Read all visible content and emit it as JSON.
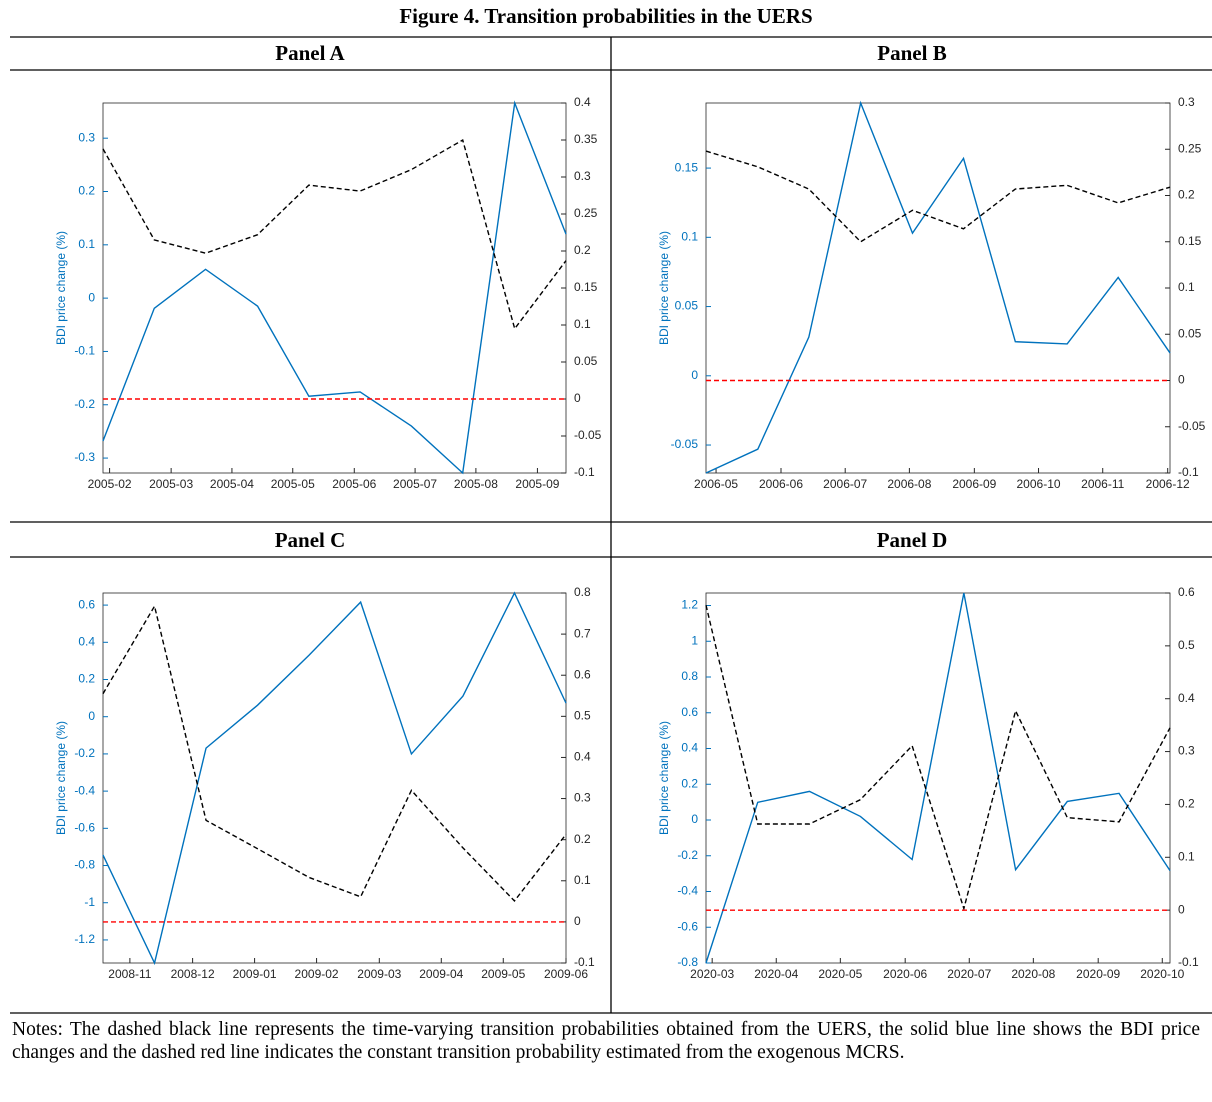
{
  "title": "Figure 4. Transition probabilities in the UERS",
  "notes": "Notes: The dashed black line represents the time-varying transition probabilities obtained from the UERS, the solid blue line shows the BDI price changes and the dashed red line indicates the constant transition probability estimated from the exogenous MCRS.",
  "chart_data": [
    {
      "type": "line",
      "title": "Panel A",
      "ylabel": "BDI price change (%)",
      "x": [
        2005.074,
        2005.144,
        2005.214,
        2005.285,
        2005.355,
        2005.425,
        2005.495,
        2005.565,
        2005.636,
        2005.706
      ],
      "xlim": [
        2005.074,
        2005.706
      ],
      "xticks": [
        {
          "value": 2005.083,
          "label": "2005-02"
        },
        {
          "value": 2005.167,
          "label": "2005-03"
        },
        {
          "value": 2005.25,
          "label": "2005-04"
        },
        {
          "value": 2005.333,
          "label": "2005-05"
        },
        {
          "value": 2005.417,
          "label": "2005-06"
        },
        {
          "value": 2005.5,
          "label": "2005-07"
        },
        {
          "value": 2005.583,
          "label": "2005-08"
        },
        {
          "value": 2005.667,
          "label": "2005-09"
        }
      ],
      "ylim": [
        -0.328,
        0.366
      ],
      "yticks": [
        -0.3,
        -0.2,
        -0.1,
        0,
        0.1,
        0.2,
        0.3
      ],
      "y2lim": [
        -0.1,
        0.4
      ],
      "y2ticks": [
        -0.1,
        -0.05,
        0,
        0.05,
        0.1,
        0.15,
        0.2,
        0.25,
        0.3,
        0.35,
        0.4
      ],
      "series": [
        {
          "color": "#0072bd",
          "dashed": false,
          "values": [
            -0.268,
            -0.019,
            0.054,
            -0.015,
            -0.184,
            -0.176,
            -0.24,
            -0.328,
            0.366,
            0.12
          ]
        },
        {
          "color": "#000000",
          "dashed": true,
          "axis": "y2",
          "values": [
            0.338,
            0.215,
            0.197,
            0.222,
            0.289,
            0.281,
            0.31,
            0.35,
            0.095,
            0.187
          ]
        },
        {
          "color": "#ff0000",
          "dashed": true,
          "axis": "y2",
          "values": [
            0,
            0,
            0,
            0,
            0,
            0,
            0,
            0,
            0,
            0
          ]
        }
      ]
    },
    {
      "type": "line",
      "title": "Panel B",
      "ylabel": "BDI price change (%)",
      "x": [
        2006.32,
        2006.387,
        2006.453,
        2006.52,
        2006.587,
        2006.653,
        2006.72,
        2006.787,
        2006.853,
        2006.92
      ],
      "xlim": [
        2006.32,
        2006.92
      ],
      "xticks": [
        {
          "value": 2006.333,
          "label": "2006-05"
        },
        {
          "value": 2006.417,
          "label": "2006-06"
        },
        {
          "value": 2006.5,
          "label": "2006-07"
        },
        {
          "value": 2006.583,
          "label": "2006-08"
        },
        {
          "value": 2006.667,
          "label": "2006-09"
        },
        {
          "value": 2006.75,
          "label": "2006-10"
        },
        {
          "value": 2006.833,
          "label": "2006-11"
        },
        {
          "value": 2006.917,
          "label": "2006-12"
        }
      ],
      "ylim": [
        -0.0702,
        0.197
      ],
      "yticks": [
        -0.05,
        0,
        0.05,
        0.1,
        0.15
      ],
      "y2lim": [
        -0.1,
        0.3
      ],
      "y2ticks": [
        -0.1,
        -0.05,
        0,
        0.05,
        0.1,
        0.15,
        0.2,
        0.25,
        0.3
      ],
      "series": [
        {
          "color": "#0072bd",
          "dashed": false,
          "values": [
            -0.0702,
            -0.053,
            0.028,
            0.197,
            0.103,
            0.157,
            0.0246,
            0.023,
            0.071,
            0.0165
          ]
        },
        {
          "color": "#000000",
          "dashed": true,
          "axis": "y2",
          "values": [
            0.248,
            0.231,
            0.207,
            0.15,
            0.184,
            0.164,
            0.207,
            0.211,
            0.192,
            0.209
          ]
        },
        {
          "color": "#ff0000",
          "dashed": true,
          "axis": "y2",
          "values": [
            0,
            0,
            0,
            0,
            0,
            0,
            0,
            0,
            0,
            0
          ]
        }
      ]
    },
    {
      "type": "line",
      "title": "Panel C",
      "ylabel": "BDI price change (%)",
      "x": [
        2008.797,
        2008.866,
        2008.935,
        2009.004,
        2009.073,
        2009.142,
        2009.21,
        2009.279,
        2009.348,
        2009.417
      ],
      "xlim": [
        2008.797,
        2009.417
      ],
      "xticks": [
        {
          "value": 2008.833,
          "label": "2008-11"
        },
        {
          "value": 2008.917,
          "label": "2008-12"
        },
        {
          "value": 2009.0,
          "label": "2009-01"
        },
        {
          "value": 2009.083,
          "label": "2009-02"
        },
        {
          "value": 2009.167,
          "label": "2009-03"
        },
        {
          "value": 2009.25,
          "label": "2009-04"
        },
        {
          "value": 2009.333,
          "label": "2009-05"
        },
        {
          "value": 2009.417,
          "label": "2009-06"
        }
      ],
      "ylim": [
        -1.324,
        0.665
      ],
      "yticks": [
        -1.2,
        -1,
        -0.8,
        -0.6,
        -0.4,
        -0.2,
        0,
        0.2,
        0.4,
        0.6
      ],
      "y2lim": [
        -0.1,
        0.8
      ],
      "y2ticks": [
        -0.1,
        0,
        0.1,
        0.2,
        0.3,
        0.4,
        0.5,
        0.6,
        0.7,
        0.8
      ],
      "series": [
        {
          "color": "#0072bd",
          "dashed": false,
          "values": [
            -0.744,
            -1.324,
            -0.169,
            0.062,
            0.331,
            0.616,
            -0.2,
            0.111,
            0.665,
            0.073
          ]
        },
        {
          "color": "#000000",
          "dashed": true,
          "axis": "y2",
          "values": [
            0.555,
            0.768,
            0.247,
            0.178,
            0.108,
            0.061,
            0.32,
            0.18,
            0.051,
            0.213
          ]
        },
        {
          "color": "#ff0000",
          "dashed": true,
          "axis": "y2",
          "values": [
            0,
            0,
            0,
            0,
            0,
            0,
            0,
            0,
            0,
            0
          ]
        }
      ]
    },
    {
      "type": "line",
      "title": "Panel D",
      "ylabel": "BDI price change (%)",
      "x": [
        2020.159,
        2020.226,
        2020.293,
        2020.359,
        2020.426,
        2020.493,
        2020.56,
        2020.627,
        2020.694,
        2020.76
      ],
      "xlim": [
        2020.159,
        2020.76
      ],
      "xticks": [
        {
          "value": 2020.167,
          "label": "2020-03"
        },
        {
          "value": 2020.25,
          "label": "2020-04"
        },
        {
          "value": 2020.333,
          "label": "2020-05"
        },
        {
          "value": 2020.417,
          "label": "2020-06"
        },
        {
          "value": 2020.5,
          "label": "2020-07"
        },
        {
          "value": 2020.583,
          "label": "2020-08"
        },
        {
          "value": 2020.667,
          "label": "2020-09"
        },
        {
          "value": 2020.75,
          "label": "2020-10"
        }
      ],
      "ylim": [
        -0.8,
        1.27
      ],
      "yticks": [
        -0.8,
        -0.6,
        -0.4,
        -0.2,
        0,
        0.2,
        0.4,
        0.6,
        0.8,
        1,
        1.2
      ],
      "y2lim": [
        -0.1,
        0.6
      ],
      "y2ticks": [
        -0.1,
        0,
        0.1,
        0.2,
        0.3,
        0.4,
        0.5,
        0.6
      ],
      "series": [
        {
          "color": "#0072bd",
          "dashed": false,
          "values": [
            -0.8,
            0.099,
            0.16,
            0.02,
            -0.221,
            1.27,
            -0.278,
            0.104,
            0.149,
            -0.283
          ]
        },
        {
          "color": "#000000",
          "dashed": true,
          "axis": "y2",
          "values": [
            0.577,
            0.163,
            0.163,
            0.209,
            0.311,
            0.003,
            0.377,
            0.175,
            0.167,
            0.345
          ]
        },
        {
          "color": "#ff0000",
          "dashed": true,
          "axis": "y2",
          "values": [
            0,
            0,
            0,
            0,
            0,
            0,
            0,
            0,
            0,
            0
          ]
        }
      ]
    }
  ]
}
